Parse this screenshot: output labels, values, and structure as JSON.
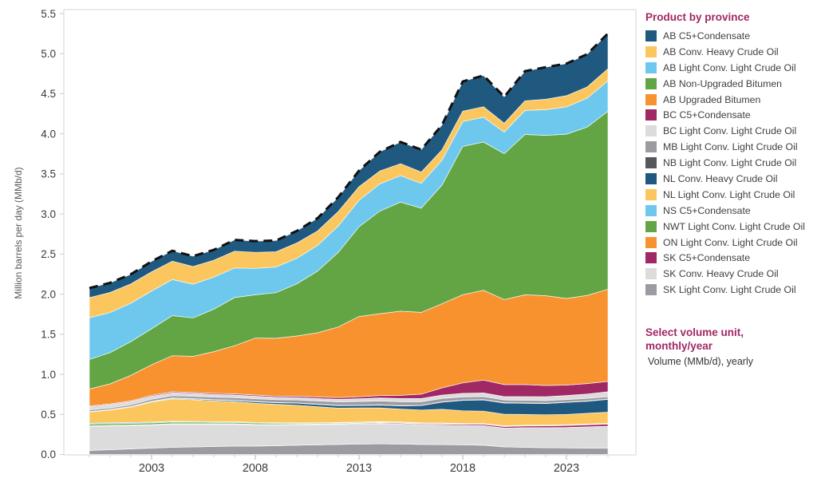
{
  "axes": {
    "y_title": "Million barrels per day (MMb/d)",
    "y_tick_labels": [
      "0.0",
      "0.5",
      "1.0",
      "1.5",
      "2.0",
      "2.5",
      "3.0",
      "3.5",
      "4.0",
      "4.5",
      "5.0",
      "5.5"
    ],
    "x_tick_labels": [
      "2003",
      "2008",
      "2013",
      "2018",
      "2023"
    ],
    "x_tick_years": [
      2003,
      2008,
      2013,
      2018,
      2023
    ]
  },
  "legend": {
    "title": "Product by province"
  },
  "unit_selector": {
    "title": "Select volume unit, monthly/year",
    "value": "Volume (MMb/d), yearly"
  },
  "chart_data": {
    "type": "area",
    "stacked": true,
    "stack_order": "first series listed is the TOP band; last series is the bottom band",
    "title": "",
    "xlabel": "",
    "ylabel": "Million barrels per day (MMb/d)",
    "ylim": [
      0,
      5.5
    ],
    "grid": false,
    "legend_position": "right",
    "total_line": {
      "style": "dashed",
      "color": "#111111",
      "meaning": "total of all series"
    },
    "x": [
      2000,
      2001,
      2002,
      2003,
      2004,
      2005,
      2006,
      2007,
      2008,
      2009,
      2010,
      2011,
      2012,
      2013,
      2014,
      2015,
      2016,
      2017,
      2018,
      2019,
      2020,
      2021,
      2022,
      2023,
      2024,
      2025
    ],
    "series": [
      {
        "name": "AB C5+Condensate",
        "color": "#20597f",
        "values": [
          0.12,
          0.12,
          0.12,
          0.13,
          0.13,
          0.13,
          0.13,
          0.14,
          0.14,
          0.14,
          0.15,
          0.16,
          0.18,
          0.2,
          0.24,
          0.27,
          0.28,
          0.31,
          0.37,
          0.39,
          0.33,
          0.37,
          0.4,
          0.4,
          0.41,
          0.44
        ]
      },
      {
        "name": "AB Conv. Heavy Crude Oil",
        "color": "#fbc65d",
        "values": [
          0.25,
          0.25,
          0.24,
          0.24,
          0.23,
          0.22,
          0.21,
          0.21,
          0.2,
          0.19,
          0.19,
          0.18,
          0.18,
          0.17,
          0.16,
          0.15,
          0.14,
          0.13,
          0.13,
          0.13,
          0.11,
          0.12,
          0.13,
          0.14,
          0.14,
          0.15
        ]
      },
      {
        "name": "AB Light Conv. Light Crude Oil",
        "color": "#6ec8ee",
        "values": [
          0.52,
          0.5,
          0.48,
          0.47,
          0.45,
          0.42,
          0.4,
          0.37,
          0.33,
          0.32,
          0.32,
          0.32,
          0.33,
          0.33,
          0.34,
          0.33,
          0.31,
          0.31,
          0.31,
          0.31,
          0.27,
          0.3,
          0.32,
          0.34,
          0.36,
          0.38
        ]
      },
      {
        "name": "AB Non-Upgraded Bitumen",
        "color": "#63a545",
        "values": [
          0.37,
          0.39,
          0.42,
          0.45,
          0.5,
          0.48,
          0.53,
          0.6,
          0.54,
          0.57,
          0.65,
          0.77,
          0.93,
          1.12,
          1.28,
          1.36,
          1.3,
          1.48,
          1.85,
          1.85,
          1.82,
          2.0,
          2.0,
          2.05,
          2.1,
          2.22
        ]
      },
      {
        "name": "AB Upgraded Bitumen",
        "color": "#f8922f",
        "values": [
          0.21,
          0.25,
          0.32,
          0.38,
          0.45,
          0.45,
          0.52,
          0.6,
          0.71,
          0.72,
          0.75,
          0.8,
          0.88,
          1.0,
          1.02,
          1.05,
          1.02,
          1.05,
          1.1,
          1.12,
          1.06,
          1.12,
          1.12,
          1.08,
          1.1,
          1.15
        ]
      },
      {
        "name": "BC C5+Condensate",
        "color": "#a02864",
        "values": [
          0.01,
          0.01,
          0.01,
          0.012,
          0.012,
          0.012,
          0.014,
          0.015,
          0.015,
          0.015,
          0.018,
          0.02,
          0.022,
          0.025,
          0.03,
          0.04,
          0.055,
          0.09,
          0.13,
          0.16,
          0.15,
          0.15,
          0.14,
          0.13,
          0.13,
          0.13
        ]
      },
      {
        "name": "BC Light Conv. Light Crude Oil",
        "color": "#dcdcdc",
        "values": [
          0.04,
          0.04,
          0.038,
          0.038,
          0.036,
          0.035,
          0.034,
          0.033,
          0.032,
          0.03,
          0.03,
          0.03,
          0.032,
          0.035,
          0.038,
          0.04,
          0.04,
          0.042,
          0.045,
          0.045,
          0.042,
          0.045,
          0.048,
          0.05,
          0.055,
          0.06
        ]
      },
      {
        "name": "MB Light Conv. Light Crude Oil",
        "color": "#9b9ba1",
        "values": [
          0.02,
          0.02,
          0.022,
          0.025,
          0.028,
          0.03,
          0.03,
          0.032,
          0.034,
          0.034,
          0.036,
          0.04,
          0.044,
          0.046,
          0.048,
          0.048,
          0.044,
          0.042,
          0.038,
          0.038,
          0.034,
          0.034,
          0.033,
          0.032,
          0.032,
          0.03
        ]
      },
      {
        "name": "NB Light Conv. Light Crude Oil",
        "color": "#54585c",
        "values": [
          0.004,
          0.004,
          0.004,
          0.004,
          0.004,
          0.004,
          0.004,
          0.004,
          0.004,
          0.004,
          0.004,
          0.004,
          0.004,
          0.004,
          0.004,
          0.004,
          0.004,
          0.004,
          0.004,
          0.004,
          0.004,
          0.004,
          0.004,
          0.004,
          0.004,
          0.004
        ]
      },
      {
        "name": "NL Conv. Heavy Crude Oil",
        "color": "#20597f",
        "values": [
          0.002,
          0.002,
          0.004,
          0.006,
          0.008,
          0.01,
          0.012,
          0.015,
          0.018,
          0.02,
          0.025,
          0.028,
          0.03,
          0.03,
          0.035,
          0.04,
          0.055,
          0.09,
          0.13,
          0.14,
          0.14,
          0.14,
          0.14,
          0.15,
          0.15,
          0.16
        ]
      },
      {
        "name": "NL Light Conv. Light Crude Oil",
        "color": "#fbc65d",
        "values": [
          0.14,
          0.16,
          0.19,
          0.25,
          0.28,
          0.27,
          0.26,
          0.25,
          0.24,
          0.23,
          0.22,
          0.2,
          0.18,
          0.175,
          0.17,
          0.16,
          0.16,
          0.17,
          0.16,
          0.155,
          0.145,
          0.135,
          0.13,
          0.13,
          0.135,
          0.14
        ]
      },
      {
        "name": "NS C5+Condensate",
        "color": "#6ec8ee",
        "values": [
          0.012,
          0.012,
          0.012,
          0.011,
          0.01,
          0.01,
          0.009,
          0.008,
          0.008,
          0.007,
          0.006,
          0.006,
          0.005,
          0.004,
          0.004,
          0.003,
          0.003,
          0.002,
          0.001,
          0,
          0,
          0,
          0,
          0,
          0,
          0
        ]
      },
      {
        "name": "NWT Light Conv. Light Crude Oil",
        "color": "#63a545",
        "values": [
          0.02,
          0.02,
          0.02,
          0.02,
          0.02,
          0.019,
          0.016,
          0.016,
          0.015,
          0.015,
          0.012,
          0.01,
          0.01,
          0.01,
          0.009,
          0.009,
          0.008,
          0.008,
          0.007,
          0.006,
          0.005,
          0.005,
          0.005,
          0.005,
          0.005,
          0.005
        ]
      },
      {
        "name": "ON Light Conv. Light Crude Oil",
        "color": "#f8922f",
        "values": [
          0.004,
          0.004,
          0.004,
          0.004,
          0.004,
          0.004,
          0.004,
          0.004,
          0.004,
          0.004,
          0.004,
          0.004,
          0.004,
          0.004,
          0.004,
          0.004,
          0.004,
          0.004,
          0.004,
          0.004,
          0.004,
          0.004,
          0.004,
          0.004,
          0.004,
          0.004
        ]
      },
      {
        "name": "SK C5+Condensate",
        "color": "#a02864",
        "values": [
          0.004,
          0.004,
          0.004,
          0.004,
          0.005,
          0.005,
          0.005,
          0.005,
          0.005,
          0.005,
          0.006,
          0.006,
          0.007,
          0.008,
          0.01,
          0.01,
          0.01,
          0.012,
          0.014,
          0.016,
          0.018,
          0.02,
          0.022,
          0.024,
          0.025,
          0.026
        ]
      },
      {
        "name": "SK Conv. Heavy Crude Oil",
        "color": "#dcdcdc",
        "values": [
          0.3,
          0.295,
          0.29,
          0.285,
          0.285,
          0.28,
          0.275,
          0.27,
          0.262,
          0.255,
          0.252,
          0.25,
          0.248,
          0.25,
          0.252,
          0.25,
          0.245,
          0.245,
          0.24,
          0.245,
          0.235,
          0.245,
          0.25,
          0.255,
          0.265,
          0.275
        ]
      },
      {
        "name": "SK Light Conv. Light Crude Oil",
        "color": "#9b9ba1",
        "values": [
          0.05,
          0.06,
          0.07,
          0.08,
          0.09,
          0.095,
          0.1,
          0.105,
          0.105,
          0.11,
          0.115,
          0.12,
          0.125,
          0.13,
          0.132,
          0.13,
          0.125,
          0.122,
          0.12,
          0.115,
          0.095,
          0.09,
          0.085,
          0.082,
          0.08,
          0.078
        ]
      }
    ]
  }
}
